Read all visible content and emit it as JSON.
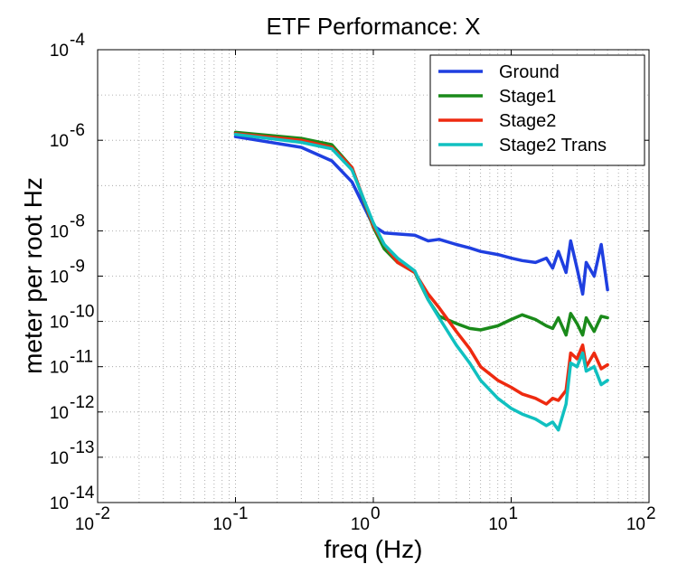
{
  "chart_data": {
    "type": "line",
    "title": "ETF Performance: X",
    "xlabel": "freq (Hz)",
    "ylabel": "meter per root Hz",
    "x_scale": "log",
    "y_scale": "log",
    "xlim": [
      0.01,
      100
    ],
    "ylim": [
      1e-14,
      0.0001
    ],
    "grid": true,
    "legend_position": "top-right",
    "x_ticks": [
      {
        "value": 0.01,
        "base": "10",
        "exp": "-2"
      },
      {
        "value": 0.1,
        "base": "10",
        "exp": "-1"
      },
      {
        "value": 1,
        "base": "10",
        "exp": "0"
      },
      {
        "value": 10,
        "base": "10",
        "exp": "1"
      },
      {
        "value": 100,
        "base": "10",
        "exp": "2"
      }
    ],
    "y_ticks": [
      {
        "value": 1e-14,
        "base": "10",
        "exp": "-14"
      },
      {
        "value": 1e-13,
        "base": "10",
        "exp": "-13"
      },
      {
        "value": 1e-12,
        "base": "10",
        "exp": "-12"
      },
      {
        "value": 1e-11,
        "base": "10",
        "exp": "-11"
      },
      {
        "value": 1e-10,
        "base": "10",
        "exp": "-10"
      },
      {
        "value": 1e-09,
        "base": "10",
        "exp": "-9"
      },
      {
        "value": 1e-08,
        "base": "10",
        "exp": "-8"
      },
      {
        "value": 1e-06,
        "base": "10",
        "exp": "-6"
      },
      {
        "value": 0.0001,
        "base": "10",
        "exp": "-4"
      }
    ],
    "series": [
      {
        "name": "Ground",
        "color": "#1f3fe0",
        "x": [
          0.1,
          0.3,
          0.5,
          0.7,
          1.0,
          1.2,
          1.5,
          2.0,
          2.5,
          3.0,
          4.0,
          5.0,
          6.0,
          8.0,
          10,
          12,
          15,
          18,
          20,
          22,
          25,
          27,
          30,
          33,
          35,
          40,
          45,
          50
        ],
        "y": [
          1.2e-06,
          7e-07,
          3.5e-07,
          1.2e-07,
          1.3e-08,
          9e-09,
          8.5e-09,
          8e-09,
          6e-09,
          6.5e-09,
          5e-09,
          4.2e-09,
          3.5e-09,
          3e-09,
          2.5e-09,
          2.2e-09,
          2e-09,
          2.5e-09,
          1.5e-09,
          3.5e-09,
          1.2e-09,
          6e-09,
          1.5e-09,
          4e-10,
          2e-09,
          1e-09,
          5e-09,
          5e-10
        ]
      },
      {
        "name": "Stage1",
        "color": "#1a8a1a",
        "x": [
          0.1,
          0.3,
          0.5,
          0.7,
          1.0,
          1.2,
          1.5,
          2.0,
          2.5,
          3.0,
          4.0,
          5.0,
          6.0,
          8.0,
          10,
          12,
          15,
          18,
          20,
          22,
          25,
          27,
          30,
          33,
          35,
          40,
          45,
          50
        ],
        "y": [
          1.5e-06,
          1.1e-06,
          8e-07,
          2.5e-07,
          1.2e-08,
          4e-09,
          2e-09,
          1.2e-09,
          3e-10,
          1.3e-10,
          9e-11,
          7e-11,
          6.5e-11,
          8e-11,
          1.1e-10,
          1.4e-10,
          1.1e-10,
          8e-11,
          7e-11,
          1.2e-10,
          5e-11,
          1.5e-10,
          9e-11,
          5e-11,
          1.2e-10,
          6e-11,
          1.3e-10,
          1.2e-10
        ]
      },
      {
        "name": "Stage2",
        "color": "#ee2a10",
        "x": [
          0.1,
          0.3,
          0.5,
          0.7,
          1.0,
          1.2,
          1.5,
          2.0,
          2.5,
          3.0,
          4.0,
          5.0,
          6.0,
          8.0,
          10,
          12,
          15,
          18,
          20,
          22,
          25,
          27,
          30,
          33,
          35,
          40,
          45,
          50
        ],
        "y": [
          1.4e-06,
          1e-06,
          7e-07,
          2.5e-07,
          1.3e-08,
          5e-09,
          2e-09,
          1.2e-09,
          4e-10,
          2e-10,
          6e-11,
          2.5e-11,
          1e-11,
          5e-12,
          3.5e-12,
          2.5e-12,
          2e-12,
          1.5e-12,
          2e-12,
          1.8e-12,
          3e-12,
          2e-11,
          1.5e-11,
          3e-11,
          1e-11,
          2e-11,
          9e-12,
          1.1e-11
        ]
      },
      {
        "name": "Stage2 Trans",
        "color": "#10c0c0",
        "x": [
          0.1,
          0.3,
          0.5,
          0.7,
          1.0,
          1.2,
          1.5,
          2.0,
          2.5,
          3.0,
          4.0,
          5.0,
          6.0,
          8.0,
          10,
          12,
          15,
          18,
          20,
          22,
          25,
          27,
          30,
          33,
          35,
          40,
          45,
          50
        ],
        "y": [
          1.35e-06,
          9e-07,
          6.5e-07,
          2.2e-07,
          1.5e-08,
          5e-09,
          2.5e-09,
          1.3e-09,
          3e-10,
          1.2e-10,
          3e-11,
          1.2e-11,
          5e-12,
          2e-12,
          1.2e-12,
          9e-13,
          7e-13,
          5e-13,
          6e-13,
          4e-13,
          1.5e-12,
          1.2e-11,
          1e-11,
          2e-11,
          8e-12,
          1e-11,
          4e-12,
          5e-12
        ]
      }
    ]
  }
}
